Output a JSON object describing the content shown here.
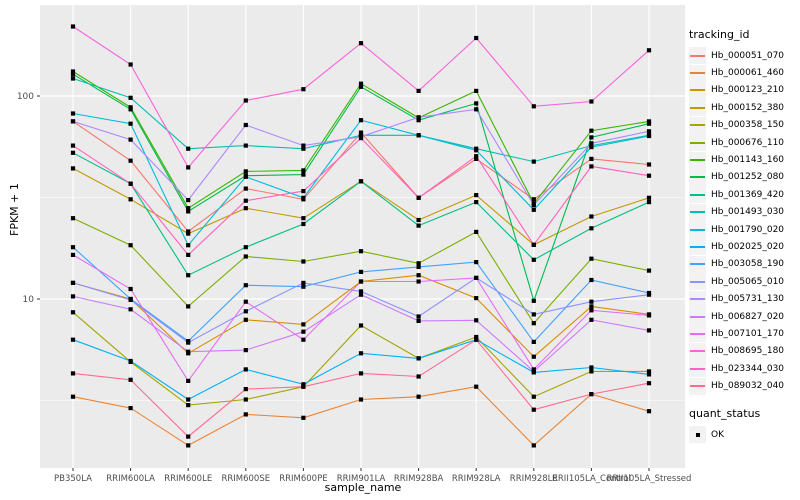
{
  "figure": {
    "bg": "#FFFFFF",
    "panel_bg": "#EBEBEB",
    "grid_color": "#FFFFFF",
    "axis_text_color": "#4D4D4D",
    "tick_color": "#333333"
  },
  "legend": {
    "tracking_title": "tracking_id",
    "quant_title": "quant_status",
    "quant_ok_label": "OK"
  },
  "y_axis": {
    "tick_labels": [
      "100",
      "10"
    ],
    "tick_values": [
      100,
      10
    ]
  },
  "chart_data": {
    "type": "line",
    "title": "",
    "xlabel": "sample_name",
    "ylabel": "FPKM + 1",
    "yscale": "log10",
    "ylim": [
      1.6,
      280
    ],
    "y_major_breaks": [
      10,
      100
    ],
    "y_minor_breaks": [
      3.162,
      31.62
    ],
    "grid": "on",
    "legend_position": "right",
    "point_shape": "filled-black-square",
    "x_categories": [
      "PB350LA",
      "RRIM600LA",
      "RRIM600LE",
      "RRIM600SE",
      "RRIM600PE",
      "RRIM901LA",
      "RRIM928BA",
      "RRIM928LA",
      "RRIM928LE",
      "RRII105LA_Control",
      "RRII105LA_Stressed"
    ],
    "series": [
      {
        "name": "Hb_000051_070",
        "color": "#F8766D",
        "values": [
          75,
          48,
          21.5,
          35,
          31,
          66,
          31.5,
          49,
          31,
          49,
          46
        ]
      },
      {
        "name": "Hb_000061_460",
        "color": "#EA8331",
        "values": [
          3.3,
          2.9,
          1.9,
          2.7,
          2.6,
          3.2,
          3.3,
          3.7,
          1.9,
          3.4,
          2.8
        ]
      },
      {
        "name": "Hb_000123_210",
        "color": "#D89000",
        "values": [
          12,
          10,
          5.4,
          7.9,
          7.5,
          12.2,
          13.1,
          10.1,
          5.2,
          9.2,
          8.4
        ]
      },
      {
        "name": "Hb_000152_380",
        "color": "#C09B00",
        "values": [
          44,
          31,
          21,
          28,
          25,
          38,
          24.5,
          32.5,
          18.5,
          25.5,
          31.5
        ]
      },
      {
        "name": "Hb_000358_150",
        "color": "#A3A500",
        "values": [
          8.6,
          4.9,
          3.0,
          3.2,
          3.7,
          7.4,
          5.1,
          6.5,
          3.3,
          4.4,
          4.4
        ]
      },
      {
        "name": "Hb_000676_110",
        "color": "#7CAE00",
        "values": [
          25,
          18.4,
          9.2,
          16.2,
          15.3,
          17.2,
          15.0,
          21.4,
          7.6,
          15.8,
          13.8
        ]
      },
      {
        "name": "Hb_001143_160",
        "color": "#39B600",
        "values": [
          132,
          88,
          28,
          42.5,
          43,
          115,
          78,
          106,
          29.5,
          67.5,
          75
        ]
      },
      {
        "name": "Hb_001252_080",
        "color": "#00BB4E",
        "values": [
          128,
          86,
          27,
          40.5,
          41,
          111,
          76,
          92,
          9.8,
          62.5,
          73
        ]
      },
      {
        "name": "Hb_001369_420",
        "color": "#00C087",
        "values": [
          52.5,
          37,
          13.1,
          18,
          23.4,
          38,
          23,
          30,
          15.6,
          22.3,
          30
        ]
      },
      {
        "name": "Hb_001493_030",
        "color": "#00C0B2",
        "values": [
          122,
          98,
          55,
          57,
          55,
          64,
          64,
          55,
          47.5,
          57,
          64
        ]
      },
      {
        "name": "Hb_001790_020",
        "color": "#00BCD8",
        "values": [
          82,
          73,
          18.4,
          40,
          31.5,
          76,
          64,
          54,
          27.5,
          56,
          63.5
        ]
      },
      {
        "name": "Hb_002025_020",
        "color": "#00B0F6",
        "values": [
          6.3,
          4.95,
          3.2,
          4.5,
          3.8,
          5.4,
          5.1,
          6.3,
          4.35,
          4.6,
          4.25
        ]
      },
      {
        "name": "Hb_003058_190",
        "color": "#3FA2FF",
        "values": [
          18,
          10,
          6.2,
          11.7,
          11.5,
          13.6,
          14.4,
          15.2,
          6.15,
          12.4,
          10.7
        ]
      },
      {
        "name": "Hb_005065_010",
        "color": "#8B93FF",
        "values": [
          12,
          9.9,
          6.1,
          8.7,
          12.0,
          10.9,
          8.2,
          12.7,
          8.4,
          9.7,
          10.5
        ]
      },
      {
        "name": "Hb_005731_130",
        "color": "#AE87FF",
        "values": [
          75,
          61,
          30.7,
          72,
          57,
          63,
          78.5,
          86,
          29,
          58.5,
          67
        ]
      },
      {
        "name": "Hb_006827_020",
        "color": "#CD79FF",
        "values": [
          10.3,
          8.9,
          5.5,
          5.6,
          6.9,
          10.5,
          7.8,
          7.85,
          4.4,
          7.9,
          7.0
        ]
      },
      {
        "name": "Hb_007101_170",
        "color": "#E76BF3",
        "values": [
          16.5,
          11.2,
          3.95,
          9.7,
          6.3,
          12.2,
          12.2,
          12.7,
          4.5,
          8.8,
          8.3
        ]
      },
      {
        "name": "Hb_008695_180",
        "color": "#FA62DB",
        "values": [
          220,
          143,
          44.5,
          95,
          108,
          182,
          106,
          193,
          89,
          94,
          168
        ]
      },
      {
        "name": "Hb_023344_030",
        "color": "#FF61C3",
        "values": [
          57,
          37,
          16.5,
          30.5,
          34,
          62,
          31.5,
          50.5,
          18.5,
          45,
          40.5
        ]
      },
      {
        "name": "Hb_089032_040",
        "color": "#FF6A94",
        "values": [
          4.3,
          4.0,
          2.1,
          3.6,
          3.7,
          4.3,
          4.15,
          6.3,
          2.85,
          3.4,
          3.85
        ]
      }
    ],
    "quant_status": {
      "title": "quant_status",
      "items": [
        "OK"
      ]
    }
  }
}
